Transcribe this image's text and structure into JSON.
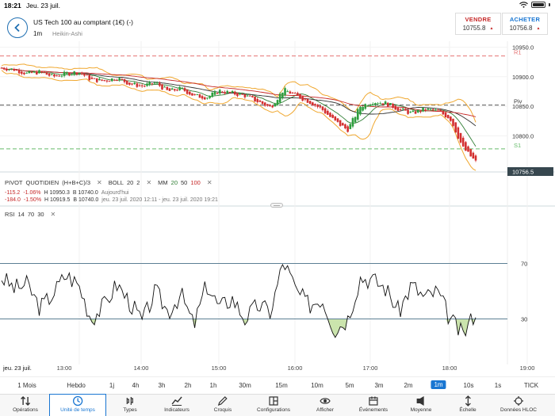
{
  "status": {
    "time": "18:21",
    "date": "Jeu. 23 juil."
  },
  "header": {
    "instrument": "US Tech 100 au comptant (1€) (-)",
    "timeframe": "1m",
    "chart_type": "Heikin-Ashi",
    "sell": {
      "label": "VENDRE",
      "value": "10755.8"
    },
    "buy": {
      "label": "ACHETER",
      "value": "10756.8"
    }
  },
  "colors": {
    "accent": "#1976d2",
    "up": "#2e9e3e",
    "down": "#d32f2f",
    "boll": "#f0a830",
    "pivot_r": "#e57373",
    "pivot_s": "#66bb6a",
    "pivot": "#555555",
    "rsi_fill": "#8bc34a"
  },
  "price_axis": {
    "ticks": [
      "10950.0",
      "10900.0",
      "10850.0",
      "10800.0"
    ],
    "current": "10756.5",
    "pivots": {
      "r1": "R1",
      "piv": "Piv",
      "s1": "S1"
    }
  },
  "indicators": {
    "pivot": {
      "name": "PIVOT",
      "period": "QUOTIDIEN",
      "formula": "(H+B+C)/3"
    },
    "boll": {
      "name": "BOLL",
      "p1": "20",
      "p2": "2"
    },
    "mm": {
      "name": "MM",
      "p1": "20",
      "p2": "50",
      "p3": "100"
    },
    "row1": {
      "change": "-115.2",
      "pct": "-1.06%",
      "high": "H 10950.3",
      "low": "B 10740.0",
      "range": "Aujourd'hui"
    },
    "row2": {
      "change": "-184.0",
      "pct": "-1.50%",
      "high": "H 10919.5",
      "low": "B 10740.0",
      "range": "jeu. 23 juil. 2020 12:11 - jeu. 23 juil. 2020 19:21"
    },
    "rsi": {
      "name": "RSI",
      "p1": "14",
      "p2": "70",
      "p3": "30",
      "upper": "70",
      "lower": "30"
    }
  },
  "time_axis": [
    "jeu. 23 juil.",
    "13:00",
    "14:00",
    "15:00",
    "16:00",
    "17:00",
    "18:00",
    "19:00"
  ],
  "timeframes": [
    "1 Mois",
    "Hebdo",
    "1j",
    "4h",
    "3h",
    "2h",
    "1h",
    "30m",
    "15m",
    "10m",
    "5m",
    "3m",
    "2m",
    "1m",
    "10s",
    "5s",
    "1s",
    "TICK"
  ],
  "active_timeframe": "1m",
  "toolbar": [
    "Opérations",
    "Unité de temps",
    "Types",
    "Indicateurs",
    "Croquis",
    "Configurations",
    "Afficher",
    "Événements",
    "Moyenne",
    "Échelle",
    "Données HLOC"
  ],
  "chart_data": {
    "type": "line",
    "price_ohlc_series": {
      "name": "US Tech 100",
      "x": [
        "12:11",
        "12:20",
        "12:30",
        "12:40",
        "12:50",
        "13:00",
        "13:10",
        "13:20",
        "13:30",
        "13:40",
        "13:50",
        "14:00",
        "14:10",
        "14:20",
        "14:30",
        "14:40",
        "14:50",
        "15:00",
        "15:10",
        "15:20",
        "15:30",
        "15:40",
        "15:50",
        "16:00",
        "16:10",
        "16:20",
        "16:30",
        "16:40",
        "16:50",
        "17:00",
        "17:10",
        "17:20",
        "17:30",
        "17:40",
        "17:50",
        "18:00",
        "18:10",
        "18:20"
      ],
      "values": [
        10915,
        10912,
        10905,
        10908,
        10900,
        10905,
        10908,
        10895,
        10893,
        10898,
        10888,
        10884,
        10890,
        10875,
        10880,
        10868,
        10865,
        10876,
        10872,
        10868,
        10858,
        10848,
        10878,
        10868,
        10858,
        10845,
        10825,
        10810,
        10850,
        10858,
        10855,
        10845,
        10838,
        10845,
        10842,
        10830,
        10780,
        10756
      ]
    },
    "rsi_series": {
      "name": "RSI",
      "x": [
        "12:11",
        "12:20",
        "12:30",
        "12:40",
        "12:50",
        "13:00",
        "13:10",
        "13:20",
        "13:30",
        "13:40",
        "13:50",
        "14:00",
        "14:10",
        "14:20",
        "14:30",
        "14:40",
        "14:50",
        "15:00",
        "15:10",
        "15:20",
        "15:30",
        "15:40",
        "15:50",
        "16:00",
        "16:10",
        "16:20",
        "16:30",
        "16:40",
        "16:50",
        "17:00",
        "17:10",
        "17:20",
        "17:30",
        "17:40",
        "17:50",
        "18:00",
        "18:10",
        "18:20"
      ],
      "values": [
        60,
        52,
        55,
        38,
        48,
        62,
        55,
        30,
        40,
        55,
        42,
        28,
        50,
        35,
        48,
        25,
        55,
        38,
        45,
        30,
        40,
        35,
        72,
        50,
        40,
        45,
        22,
        30,
        60,
        58,
        52,
        35,
        55,
        45,
        50,
        30,
        18,
        36
      ]
    },
    "pivot_levels": {
      "R1": 10935,
      "Piv": 10852,
      "S1": 10778
    },
    "ylim": [
      10735,
      10960
    ],
    "rsi_ylim": [
      0,
      100
    ],
    "rsi_levels": [
      70,
      30
    ]
  }
}
